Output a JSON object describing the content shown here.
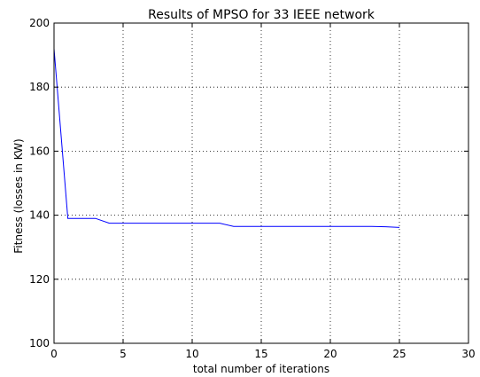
{
  "chart_data": {
    "type": "line",
    "title": "Results of MPSO for 33 IEEE network",
    "xlabel": "total number of iterations",
    "ylabel": "Fitness (losses in KW)",
    "xlim": [
      0,
      30
    ],
    "ylim": [
      100,
      200
    ],
    "xticks": [
      "0",
      "5",
      "10",
      "15",
      "20",
      "25",
      "30"
    ],
    "yticks": [
      "100",
      "120",
      "140",
      "160",
      "180",
      "200"
    ],
    "grid": true,
    "series": [
      {
        "color": "#0000ff",
        "x": [
          0,
          1,
          2,
          3,
          4,
          5,
          6,
          7,
          8,
          9,
          10,
          11,
          12,
          13,
          14,
          15,
          16,
          17,
          18,
          19,
          20,
          21,
          22,
          23,
          24,
          25
        ],
        "y": [
          192,
          139,
          139,
          139,
          137.5,
          137.5,
          137.5,
          137.5,
          137.5,
          137.5,
          137.5,
          137.5,
          137.5,
          136.5,
          136.5,
          136.5,
          136.5,
          136.5,
          136.5,
          136.5,
          136.5,
          136.5,
          136.5,
          136.5,
          136.4,
          136.2
        ]
      }
    ]
  }
}
